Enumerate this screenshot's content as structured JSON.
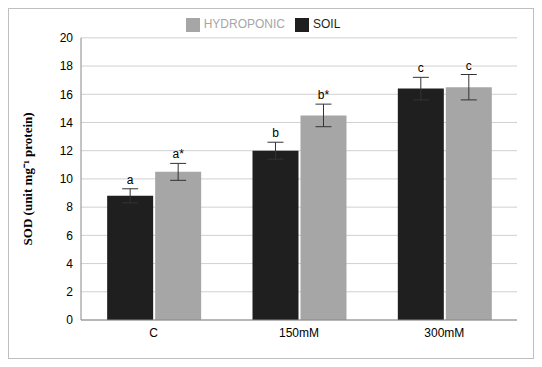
{
  "chart_data": {
    "type": "bar",
    "categories": [
      "C",
      "150mM",
      "300mM"
    ],
    "series": [
      {
        "name": "SOIL",
        "color": "#1f1f1f",
        "values": [
          8.8,
          12.0,
          16.4
        ],
        "errors": [
          0.5,
          0.6,
          0.8
        ],
        "annotations": [
          "a",
          "b",
          "c"
        ]
      },
      {
        "name": "HYDROPONIC",
        "color": "#a6a6a6",
        "values": [
          10.5,
          14.5,
          16.5
        ],
        "errors": [
          0.6,
          0.8,
          0.9
        ],
        "annotations": [
          "a*",
          "b*",
          "c"
        ]
      }
    ],
    "y_label": "SOD (unit mg⁻¹ protein)",
    "ylim": [
      0,
      20
    ],
    "yticks": [
      0,
      2,
      4,
      6,
      8,
      10,
      12,
      14,
      16,
      18,
      20
    ],
    "grid": true,
    "legend": "top"
  }
}
